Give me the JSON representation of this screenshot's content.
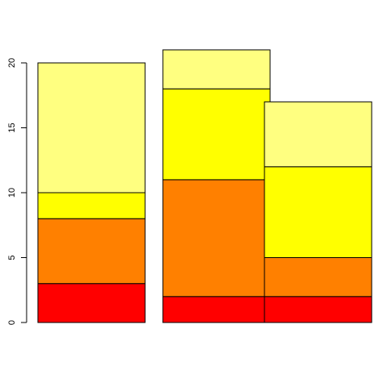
{
  "chart_data": {
    "type": "bar",
    "stacked": true,
    "categories": [
      "",
      "",
      ""
    ],
    "series": [
      {
        "values": [
          3,
          2,
          2
        ],
        "color": "#ff0000"
      },
      {
        "values": [
          5,
          9,
          3
        ],
        "color": "#ff8000"
      },
      {
        "values": [
          2,
          7,
          7
        ],
        "color": "#ffff00"
      },
      {
        "values": [
          10,
          3,
          5
        ],
        "color": "#ffff80"
      }
    ],
    "ylim": [
      0,
      21
    ],
    "yticks": [
      0,
      5,
      10,
      15,
      20
    ],
    "ytick_labels": [
      "0",
      "5",
      "10",
      "15",
      "20"
    ],
    "grid": false,
    "title": "",
    "xlabel": "",
    "ylabel": ""
  }
}
